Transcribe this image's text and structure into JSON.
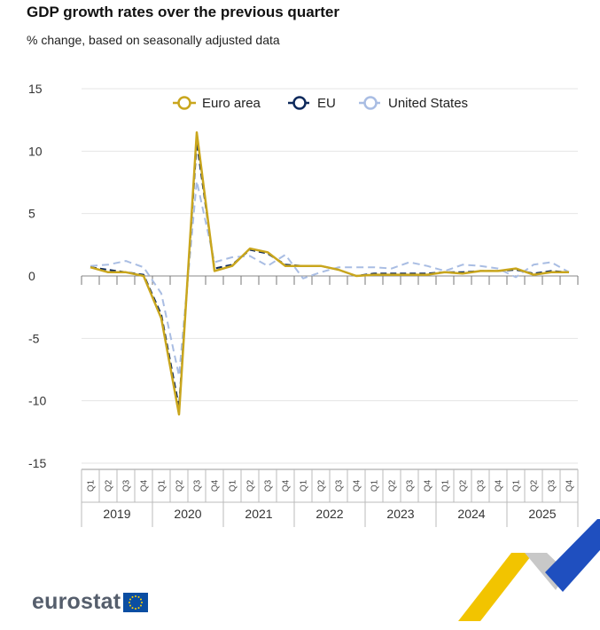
{
  "title": "GDP growth rates over the previous quarter",
  "subtitle": "% change, based on seasonally adjusted data",
  "logo_text": "eurostat",
  "chart_data": {
    "type": "line",
    "ylim": [
      -15,
      15
    ],
    "yticks": [
      15,
      10,
      5,
      0,
      -5,
      -10,
      -15
    ],
    "quarters": [
      "Q1",
      "Q2",
      "Q3",
      "Q4"
    ],
    "years": [
      "2019",
      "2020",
      "2021",
      "2022",
      "2023",
      "2024",
      "2025"
    ],
    "legend_placement": "top-center",
    "series": [
      {
        "name": "Euro area",
        "color": "#c9a61d",
        "style": "solid",
        "values": [
          0.7,
          0.3,
          0.3,
          0.0,
          -3.4,
          -11.1,
          11.5,
          0.4,
          0.8,
          2.2,
          1.9,
          0.8,
          0.8,
          0.8,
          0.5,
          0.0,
          0.1,
          0.1,
          0.1,
          0.1,
          0.3,
          0.2,
          0.4,
          0.4,
          0.6,
          0.1,
          0.3,
          0.3
        ]
      },
      {
        "name": "EU",
        "color": "#0e2a5c",
        "style": "dashed",
        "values": [
          0.7,
          0.5,
          0.3,
          0.1,
          -3.1,
          -10.5,
          10.7,
          0.6,
          0.9,
          2.1,
          1.8,
          0.9,
          0.8,
          0.8,
          0.5,
          0.0,
          0.2,
          0.2,
          0.2,
          0.2,
          0.3,
          0.3,
          0.4,
          0.4,
          0.5,
          0.2,
          0.4,
          0.3
        ]
      },
      {
        "name": "United States",
        "color": "#a9bde3",
        "style": "dashed",
        "values": [
          0.8,
          0.9,
          1.2,
          0.7,
          -1.4,
          -8.0,
          7.6,
          1.1,
          1.5,
          1.6,
          0.8,
          1.7,
          -0.2,
          0.3,
          0.7,
          0.7,
          0.7,
          0.6,
          1.1,
          0.8,
          0.4,
          0.9,
          0.8,
          0.6,
          -0.1,
          0.9,
          1.1,
          0.3
        ]
      }
    ]
  }
}
